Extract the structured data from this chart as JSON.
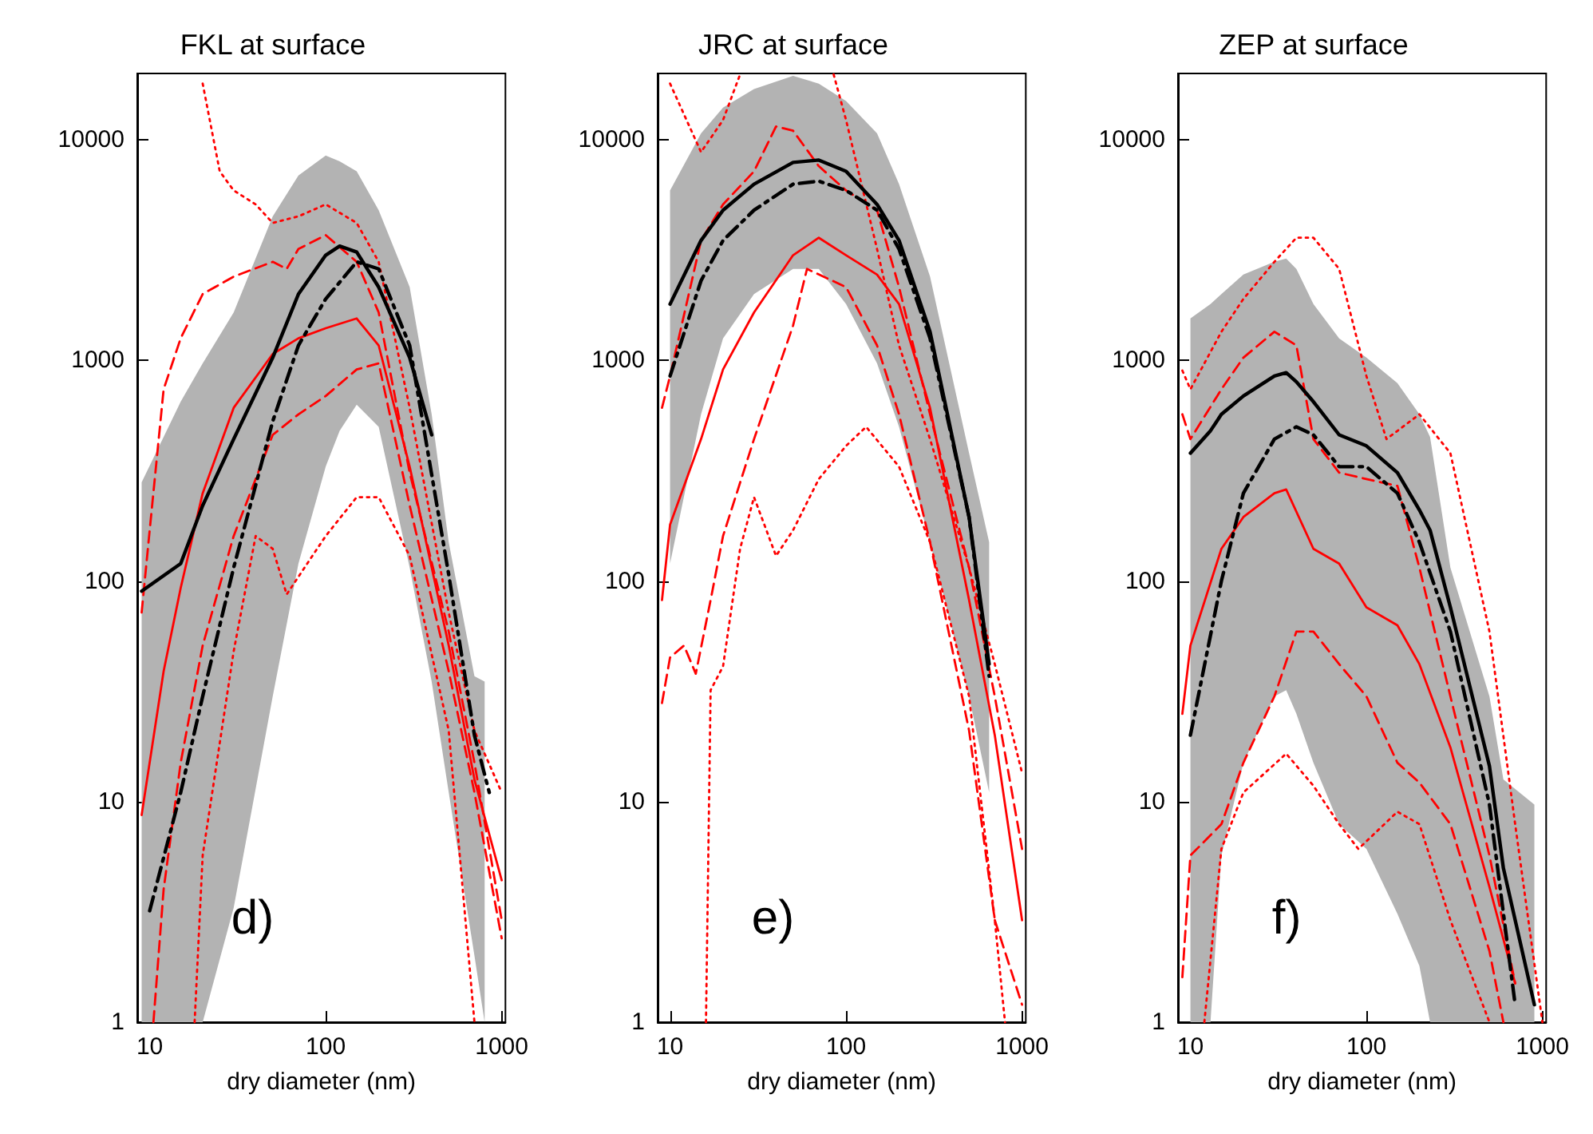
{
  "chart_data": [
    {
      "type": "line",
      "title": "FKL at surface",
      "xlabel": "dry diameter (nm)",
      "log": "xy",
      "xlim": [
        8.5,
        1050
      ],
      "xticks": [
        10,
        100,
        1000
      ],
      "ylim": [
        1,
        20000
      ],
      "yticks": [
        1,
        10,
        100,
        1000,
        10000
      ],
      "annotations": [
        "d)"
      ],
      "series": [
        {
          "color": "#000000",
          "line_style": "solid",
          "x": [
            9,
            15,
            20,
            30,
            50,
            70,
            100,
            120,
            150,
            200,
            300,
            400,
            500,
            700,
            800
          ],
          "values": [
            90,
            120,
            220,
            440,
            1030,
            2000,
            3000,
            3300,
            3100,
            2150,
            1030,
            460,
            null,
            null,
            null
          ],
          "upper": [
            280,
            650,
            970,
            1650,
            4500,
            6900,
            8500,
            8000,
            7200,
            4800,
            2150,
            570,
            150,
            37,
            35
          ],
          "lower": [
            1,
            1,
            1,
            3.3,
            30,
            120,
            330,
            480,
            630,
            500,
            115,
            35,
            11,
            2,
            1
          ]
        },
        {
          "color": "#000000",
          "line_style": "dashdot",
          "x": [
            10,
            15,
            20,
            30,
            50,
            70,
            100,
            150,
            200,
            300,
            500,
            700,
            850
          ],
          "values": [
            3.2,
            11,
            30,
            115,
            530,
            1170,
            1900,
            2800,
            2600,
            1170,
            107,
            20,
            11
          ]
        },
        {
          "color": "#ff0000",
          "line_style": "solid",
          "x": [
            9,
            12,
            15,
            20,
            30,
            50,
            70,
            100,
            150,
            200,
            300,
            500,
            700,
            1000
          ],
          "values": [
            8.7,
            39,
            93,
            250,
            610,
            1070,
            1260,
            1400,
            1550,
            1170,
            330,
            51,
            12.6,
            4.4
          ]
        },
        {
          "color": "#ff0000",
          "line_style": "dashed",
          "x": [
            9,
            10,
            12,
            15,
            20,
            30,
            50,
            60,
            70,
            100,
            150,
            200,
            300,
            500,
            700,
            1000
          ],
          "values": [
            72,
            170,
            740,
            1260,
            2000,
            2400,
            2800,
            2600,
            3200,
            3700,
            2800,
            1650,
            310,
            59,
            15,
            2.9
          ]
        },
        {
          "color": "#ff0000",
          "line_style": "dashed",
          "x": [
            10.5,
            12,
            15,
            20,
            30,
            50,
            70,
            100,
            150,
            200,
            300,
            500,
            700,
            1000
          ],
          "values": [
            1,
            4,
            15,
            51,
            160,
            460,
            570,
            690,
            910,
            970,
            220,
            39,
            11,
            2.4
          ]
        },
        {
          "color": "#ff0000",
          "line_style": "dotted",
          "x": [
            20,
            25,
            30,
            40,
            50,
            70,
            100,
            150,
            200,
            300,
            500,
            700,
            1000
          ],
          "values": [
            18000,
            7200,
            5900,
            5100,
            4200,
            4500,
            5100,
            4200,
            2800,
            610,
            72,
            21,
            11
          ]
        },
        {
          "color": "#ff0000",
          "line_style": "dotted",
          "x": [
            18,
            20,
            30,
            40,
            50,
            60,
            100,
            150,
            200,
            300,
            500,
            700
          ],
          "values": [
            1,
            5.7,
            48,
            160,
            140,
            87,
            160,
            240,
            240,
            130,
            21,
            1
          ]
        }
      ]
    },
    {
      "type": "line",
      "title": "JRC at surface",
      "xlabel": "dry diameter (nm)",
      "log": "xy",
      "xlim": [
        8.5,
        1050
      ],
      "xticks": [
        10,
        100,
        1000
      ],
      "ylim": [
        1,
        20000
      ],
      "yticks": [
        1,
        10,
        100,
        1000,
        10000
      ],
      "annotations": [
        "e)"
      ],
      "series": [
        {
          "color": "#000000",
          "line_style": "solid",
          "x": [
            10,
            15,
            20,
            30,
            50,
            70,
            100,
            150,
            200,
            300,
            500,
            650
          ],
          "values": [
            1800,
            3500,
            4800,
            6300,
            7900,
            8100,
            7200,
            5100,
            3500,
            1350,
            195,
            42
          ],
          "upper": [
            5900,
            10700,
            14000,
            17000,
            19500,
            18000,
            15000,
            10700,
            6300,
            2400,
            380,
            150
          ],
          "lower": [
            120,
            570,
            1260,
            2000,
            2600,
            2600,
            1800,
            970,
            500,
            150,
            30,
            11
          ]
        },
        {
          "color": "#000000",
          "line_style": "dashdot",
          "x": [
            10,
            15,
            20,
            30,
            50,
            70,
            100,
            150,
            200,
            300,
            500,
            650
          ],
          "values": [
            850,
            2300,
            3500,
            4800,
            6300,
            6500,
            5900,
            4800,
            3200,
            1260,
            195,
            37
          ]
        },
        {
          "color": "#ff0000",
          "line_style": "solid",
          "x": [
            9,
            10,
            15,
            20,
            30,
            50,
            70,
            100,
            150,
            200,
            300,
            500,
            700,
            1000
          ],
          "values": [
            82,
            180,
            440,
            910,
            1650,
            3000,
            3600,
            3000,
            2450,
            1800,
            610,
            82,
            20,
            2.9
          ]
        },
        {
          "color": "#ff0000",
          "line_style": "dashed",
          "x": [
            9,
            10,
            15,
            20,
            30,
            40,
            50,
            70,
            100,
            150,
            200,
            300,
            500,
            700,
            1000
          ],
          "values": [
            610,
            850,
            3500,
            5100,
            7200,
            11500,
            11000,
            7600,
            5900,
            4800,
            2150,
            570,
            115,
            30,
            6.1
          ]
        },
        {
          "color": "#ff0000",
          "line_style": "dashed",
          "x": [
            9,
            10,
            12,
            14,
            17,
            20,
            30,
            50,
            60,
            100,
            150,
            200,
            300,
            500,
            700,
            1000
          ],
          "values": [
            28,
            45,
            51,
            38,
            82,
            160,
            440,
            1440,
            2600,
            2150,
            1170,
            570,
            150,
            21,
            2.9,
            1.2
          ]
        },
        {
          "color": "#ff0000",
          "line_style": "dotted",
          "x": [
            10,
            15,
            20,
            25,
            50,
            85,
            100,
            150,
            200,
            300,
            500,
            700,
            1000
          ],
          "values": [
            18000,
            8800,
            12300,
            19800,
            null,
            19800,
            12300,
            3200,
            1170,
            440,
            115,
            42,
            13.5
          ]
        },
        {
          "color": "#ff0000",
          "line_style": "dotted",
          "x": [
            16,
            17,
            20,
            25,
            30,
            40,
            50,
            70,
            100,
            130,
            200,
            300,
            500,
            700,
            800
          ],
          "values": [
            1,
            32,
            41,
            140,
            240,
            130,
            170,
            290,
            410,
            500,
            330,
            150,
            30,
            2.9,
            1
          ]
        }
      ]
    },
    {
      "type": "line",
      "title": "ZEP at surface",
      "xlabel": "dry diameter (nm)",
      "log": "xy",
      "xlim": [
        8.5,
        1050
      ],
      "xticks": [
        10,
        100,
        1000
      ],
      "ylim": [
        1,
        20000
      ],
      "yticks": [
        1,
        10,
        100,
        1000,
        10000
      ],
      "annotations": [
        "f)"
      ],
      "series": [
        {
          "color": "#000000",
          "line_style": "solid",
          "x": [
            10,
            13,
            15,
            20,
            30,
            35,
            40,
            50,
            70,
            100,
            150,
            200,
            230,
            300,
            500,
            600,
            900
          ],
          "values": [
            380,
            480,
            570,
            690,
            850,
            880,
            800,
            650,
            460,
            410,
            310,
            210,
            170,
            76,
            14.5,
            5,
            1.2
          ],
          "upper": [
            1550,
            1800,
            2000,
            2450,
            2800,
            2900,
            2600,
            1800,
            1260,
            1030,
            790,
            570,
            450,
            115,
            30,
            12.6,
            9.7
          ],
          "lower": [
            1,
            1,
            5.7,
            15,
            30,
            32,
            25,
            15,
            7.9,
            6.1,
            3.1,
            1.8,
            1,
            1,
            1,
            1,
            1
          ]
        },
        {
          "color": "#000000",
          "line_style": "dashdot",
          "x": [
            10,
            15,
            20,
            30,
            40,
            50,
            70,
            100,
            150,
            200,
            300,
            500,
            700
          ],
          "values": [
            20,
            100,
            250,
            440,
            500,
            460,
            330,
            330,
            250,
            150,
            59,
            9.7,
            1.2
          ]
        },
        {
          "color": "#ff0000",
          "line_style": "solid",
          "x": [
            9,
            10,
            15,
            20,
            30,
            35,
            50,
            70,
            100,
            150,
            200,
            300,
            500,
            700
          ],
          "values": [
            25,
            51,
            140,
            195,
            250,
            260,
            140,
            120,
            76,
            63,
            42,
            17.6,
            4.1,
            1.5
          ]
        },
        {
          "color": "#ff0000",
          "line_style": "dashed",
          "x": [
            9,
            10,
            15,
            20,
            30,
            40,
            50,
            70,
            100,
            150,
            200,
            300,
            500,
            700
          ],
          "values": [
            570,
            440,
            740,
            1030,
            1350,
            1170,
            440,
            310,
            290,
            270,
            115,
            30,
            5.7,
            1.5
          ]
        },
        {
          "color": "#ff0000",
          "line_style": "dashed",
          "x": [
            9,
            10,
            15,
            20,
            30,
            40,
            50,
            70,
            100,
            150,
            200,
            300,
            500,
            600
          ],
          "values": [
            1.6,
            5.7,
            7.9,
            15,
            30,
            59,
            59,
            42,
            30,
            15,
            12.2,
            7.9,
            2.1,
            1
          ]
        },
        {
          "color": "#ff0000",
          "line_style": "dotted",
          "x": [
            9,
            10,
            15,
            20,
            30,
            40,
            50,
            70,
            100,
            130,
            200,
            300,
            500,
            700,
            1000
          ],
          "values": [
            900,
            740,
            1350,
            1900,
            2800,
            3600,
            3600,
            2600,
            850,
            440,
            570,
            380,
            59,
            7.9,
            1
          ]
        },
        {
          "color": "#ff0000",
          "line_style": "dotted",
          "x": [
            12,
            15,
            20,
            35,
            50,
            70,
            90,
            150,
            200,
            300,
            500
          ],
          "values": [
            1,
            6.1,
            11,
            16.5,
            11.8,
            7.9,
            6.1,
            9,
            7.9,
            2.9,
            1
          ]
        }
      ]
    }
  ]
}
